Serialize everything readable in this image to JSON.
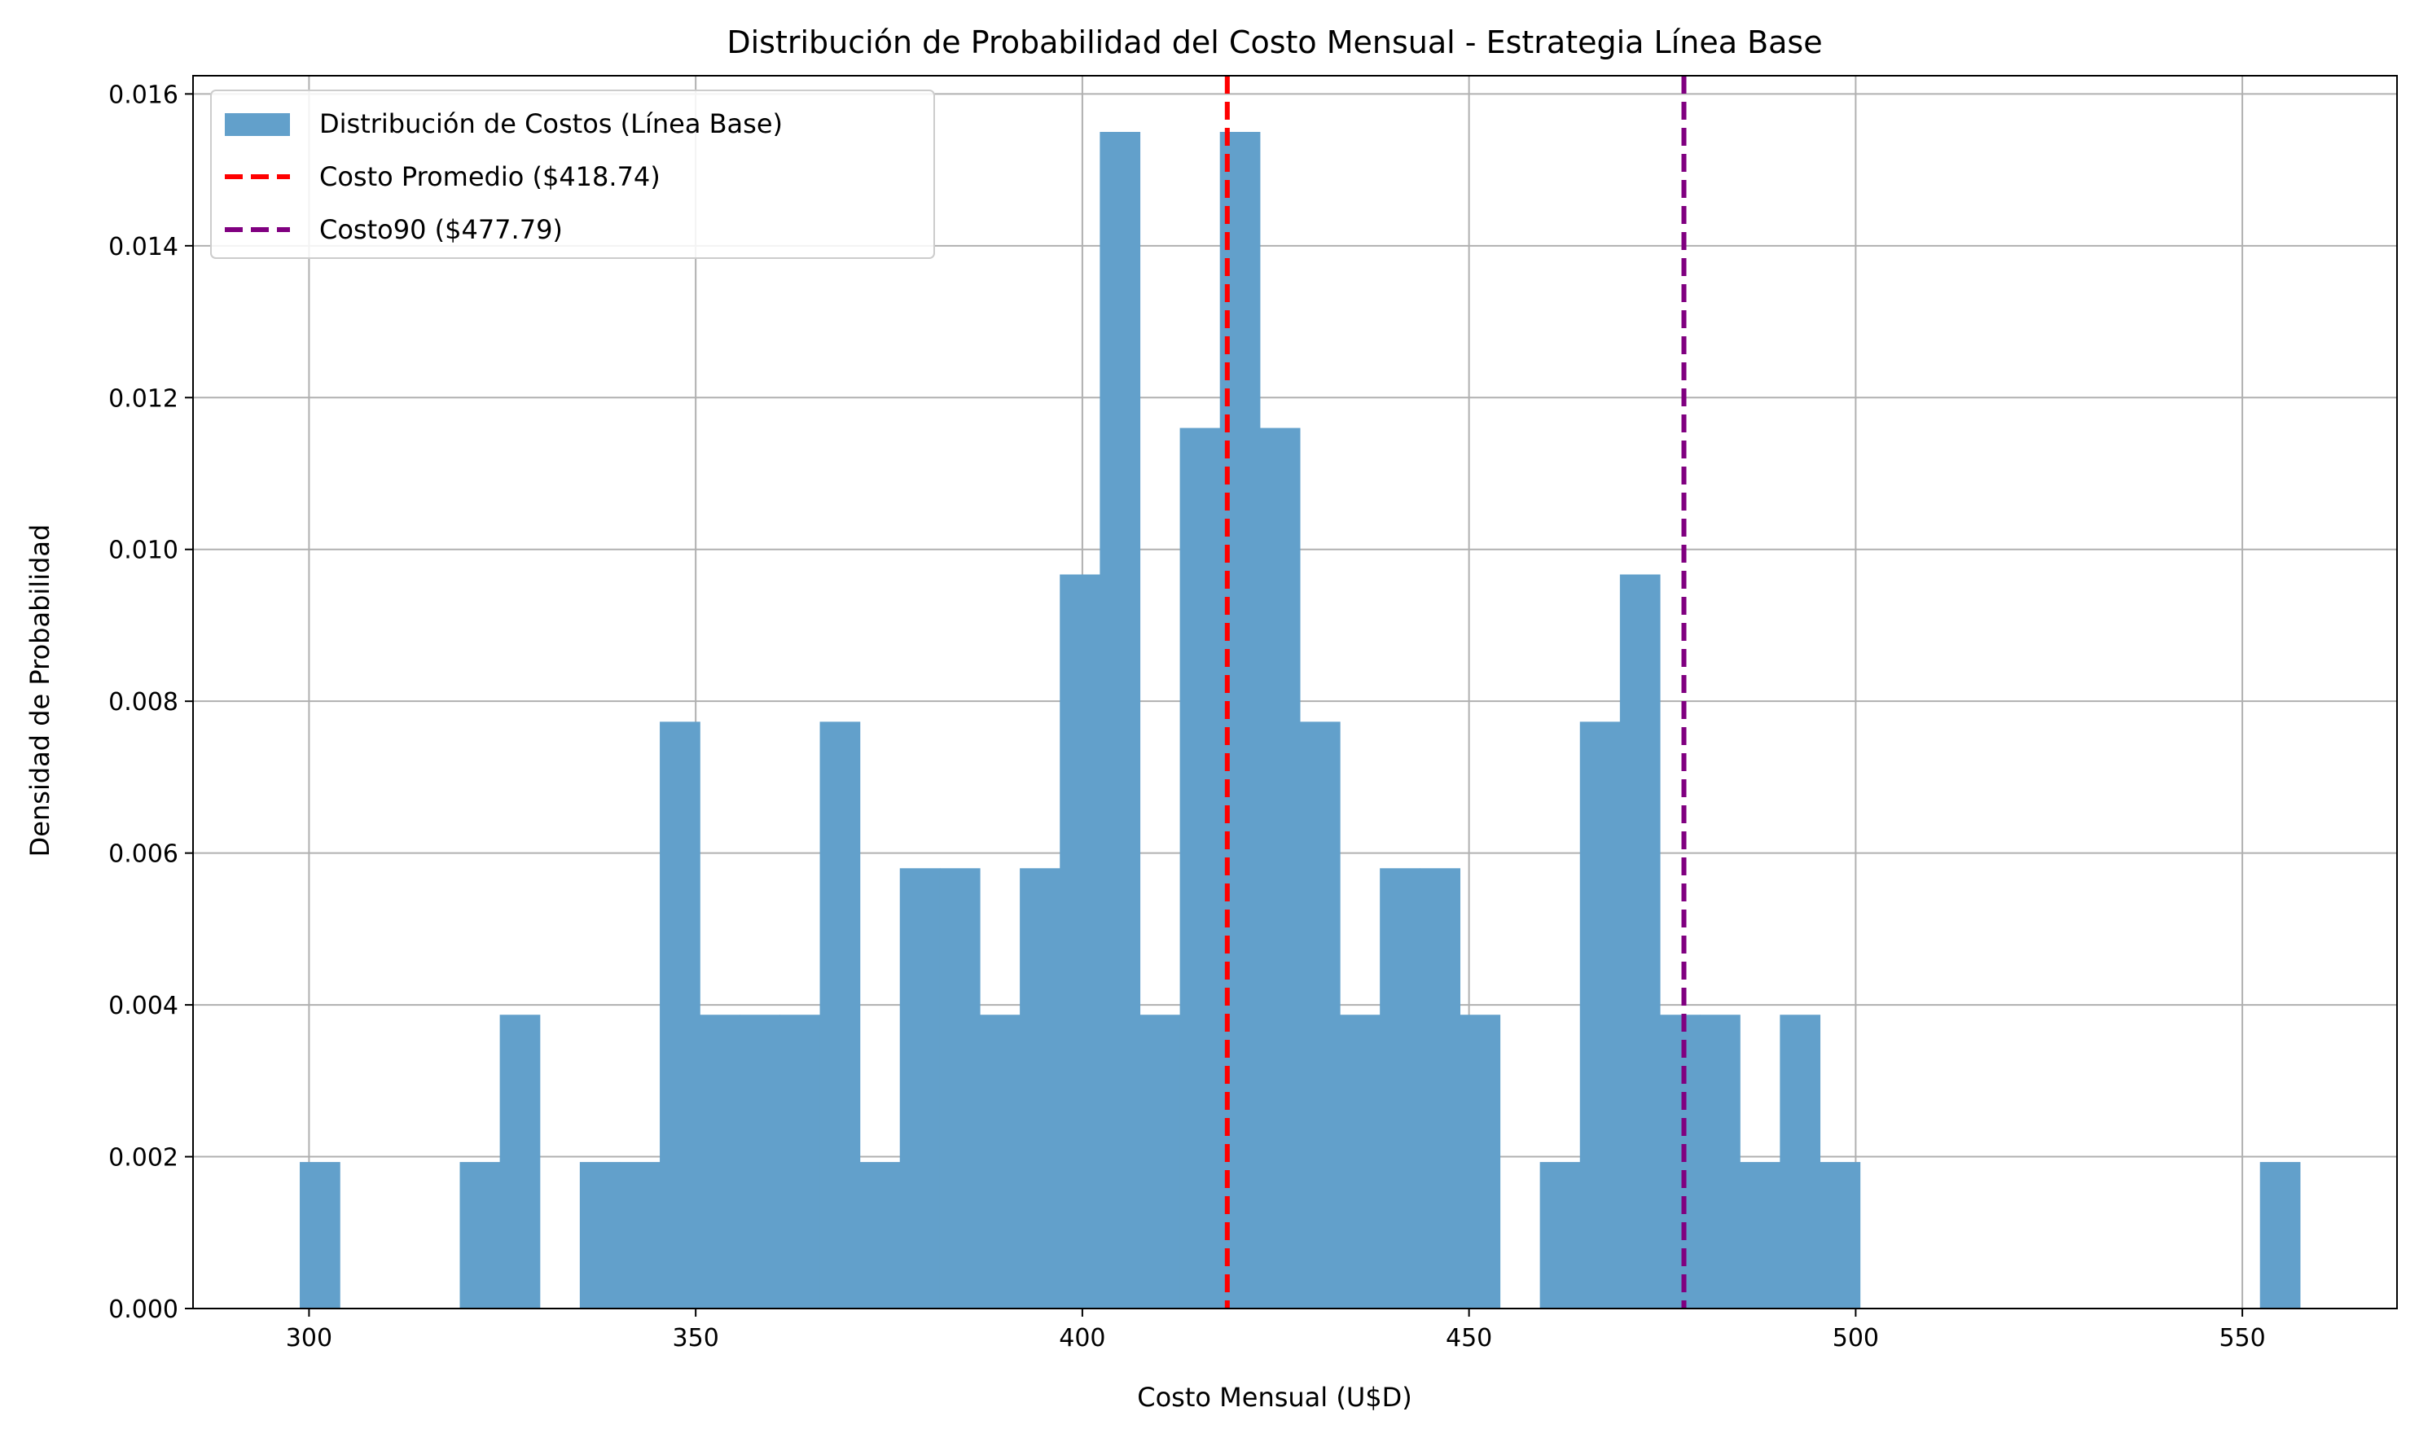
{
  "chart_data": {
    "type": "bar",
    "title": "Distribución de Probabilidad del Costo Mensual - Estrategia Línea Base",
    "xlabel": "Costo Mensual (U$D)",
    "ylabel": "Densidad de Probabilidad",
    "xlim": [
      285,
      570
    ],
    "ylim": [
      0,
      0.01624
    ],
    "x_ticks": [
      300,
      350,
      400,
      450,
      500,
      550
    ],
    "y_ticks": [
      0.0,
      0.002,
      0.004,
      0.006,
      0.008,
      0.01,
      0.012,
      0.014,
      0.016
    ],
    "y_tick_labels": [
      "0.000",
      "0.002",
      "0.004",
      "0.006",
      "0.008",
      "0.010",
      "0.012",
      "0.014",
      "0.016"
    ],
    "grid": true,
    "legend_position": "top-left",
    "bin_start": 298.8,
    "bin_width": 5.173,
    "values": [
      0.00193,
      0,
      0,
      0,
      0.00193,
      0.00387,
      0,
      0.00193,
      0.00193,
      0.00773,
      0.00387,
      0.00387,
      0.00387,
      0.00773,
      0.00193,
      0.0058,
      0.0058,
      0.00387,
      0.0058,
      0.00967,
      0.0155,
      0.00387,
      0.0116,
      0.0155,
      0.0116,
      0.00773,
      0.00387,
      0.0058,
      0.0058,
      0.00387,
      0,
      0.00193,
      0.00773,
      0.00967,
      0.00387,
      0.00387,
      0.00193,
      0.00387,
      0.00193,
      0,
      0,
      0,
      0,
      0,
      0,
      0,
      0,
      0,
      0,
      0.00193
    ],
    "series": [
      {
        "name": "Distribución de Costos (Línea Base)",
        "color": "#62a0cb",
        "kind": "histogram"
      },
      {
        "name": "Costo Promedio ($418.74)",
        "color": "#ff0000",
        "kind": "vline",
        "x": 418.74
      },
      {
        "name": "Costo90 ($477.79)",
        "color": "#800080",
        "kind": "vline",
        "x": 477.79
      }
    ]
  }
}
